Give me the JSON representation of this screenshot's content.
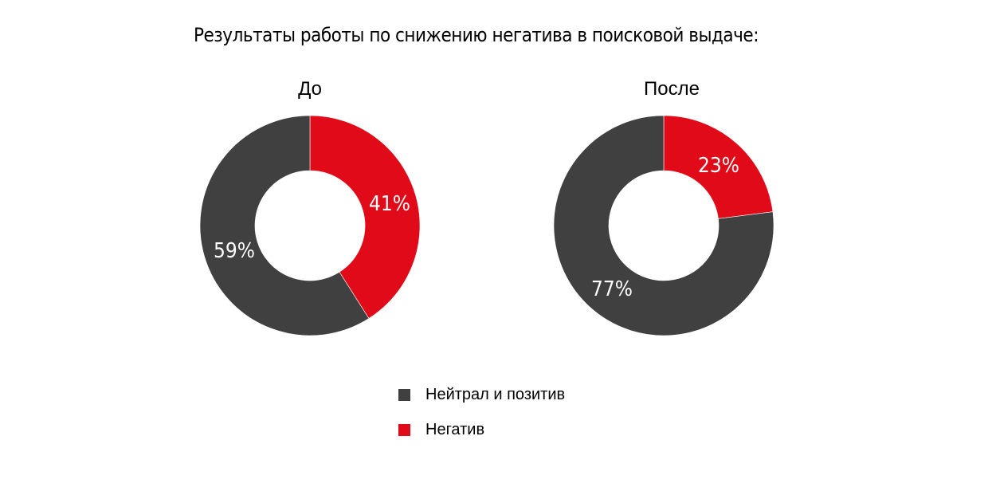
{
  "title": "Результаты работы по снижению негатива в поисковой выдаче:",
  "colors": {
    "neutral_positive": "#404040",
    "negative": "#E00A18"
  },
  "charts": [
    {
      "label": "До",
      "negative": 41,
      "neutral_positive": 59,
      "negative_label": "41%",
      "neutral_label": "59%"
    },
    {
      "label": "После",
      "negative": 23,
      "neutral_positive": 77,
      "negative_label": "23%",
      "neutral_label": "77%"
    }
  ],
  "legend": [
    {
      "label": "Нейтрал и позитив",
      "color": "#404040"
    },
    {
      "label": "Негатив",
      "color": "#E00A18"
    }
  ],
  "chart_data": [
    {
      "type": "pie",
      "variant": "donut",
      "title": "До",
      "categories": [
        "Негатив",
        "Нейтрал и позитив"
      ],
      "values": [
        41,
        59
      ],
      "colors": [
        "#E00A18",
        "#404040"
      ],
      "data_labels": [
        "41%",
        "59%"
      ],
      "legend_position": "bottom"
    },
    {
      "type": "pie",
      "variant": "donut",
      "title": "После",
      "categories": [
        "Негатив",
        "Нейтрал и позитив"
      ],
      "values": [
        23,
        77
      ],
      "colors": [
        "#E00A18",
        "#404040"
      ],
      "data_labels": [
        "23%",
        "77%"
      ],
      "legend_position": "bottom"
    }
  ]
}
